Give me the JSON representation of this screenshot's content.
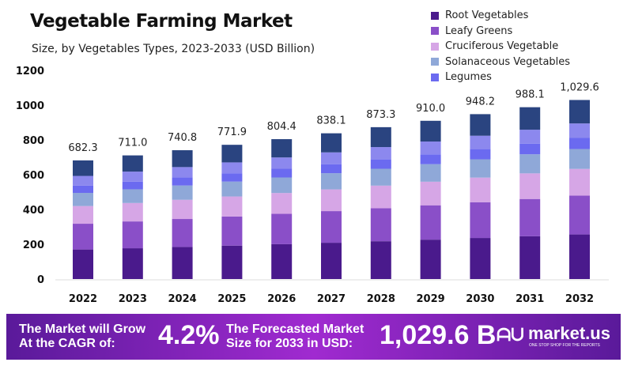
{
  "chart_data": {
    "type": "bar",
    "stacked": true,
    "title": "Vegetable Farming Market",
    "subtitle": "Size, by Vegetables Types, 2023-2033  (USD Billion)",
    "categories": [
      "2022",
      "2023",
      "2024",
      "2025",
      "2026",
      "2027",
      "2028",
      "2029",
      "2030",
      "2031",
      "2032"
    ],
    "totals": [
      "682.3",
      "711.0",
      "740.8",
      "771.9",
      "804.4",
      "838.1",
      "873.3",
      "910.0",
      "948.2",
      "988.1",
      "1,029.6"
    ],
    "ylim": [
      0,
      1200
    ],
    "yticks": [
      0,
      200,
      400,
      600,
      800,
      1000,
      1200
    ],
    "grid": false,
    "legend": "top-right",
    "series": [
      {
        "name": "Root Vegetables",
        "color": "#4a1a8c",
        "values": [
          169.9,
          177.0,
          184.5,
          192.2,
          200.3,
          208.7,
          217.5,
          226.6,
          236.1,
          246.0,
          256.4
        ]
      },
      {
        "name": "Leafy Greens",
        "color": "#8a4fc8",
        "values": [
          148.1,
          154.3,
          160.8,
          167.5,
          174.6,
          181.9,
          189.5,
          197.5,
          205.8,
          214.4,
          223.4
        ]
      },
      {
        "name": "Cruciferous Vegetable",
        "color": "#d6a6e6",
        "values": [
          101.7,
          105.9,
          110.4,
          115.0,
          119.9,
          124.9,
          130.1,
          135.6,
          141.3,
          147.2,
          153.4
        ]
      },
      {
        "name": "Solanaceous Vegetables",
        "color": "#8fa8d8",
        "values": [
          75.7,
          78.9,
          82.2,
          85.7,
          89.3,
          93.0,
          96.9,
          101.0,
          105.3,
          109.7,
          114.3
        ]
      },
      {
        "name": "Legumes",
        "color": "#6b6af0",
        "values": [
          42.3,
          44.1,
          45.9,
          47.9,
          49.9,
          52.0,
          54.1,
          56.4,
          58.8,
          61.3,
          63.8
        ]
      },
      {
        "color": "#8c88ee",
        "values": [
          55.3,
          57.6,
          60.0,
          62.5,
          65.2,
          67.9,
          70.7,
          73.7,
          76.8,
          80.0,
          83.4
        ]
      },
      {
        "color": "#2a4480",
        "values": [
          89.3,
          93.2,
          97.0,
          101.1,
          105.2,
          109.7,
          114.5,
          119.2,
          124.1,
          129.5,
          134.9
        ]
      }
    ]
  },
  "banner": {
    "cagr_label": "The Market will Grow At the CAGR of:",
    "cagr": "4.2%",
    "forecast_label": "The Forecasted Market Size for 2033 in USD:",
    "forecast": "1,029.6 B",
    "brand": "market.us",
    "tagline": "ONE STOP SHOP FOR THE REPORTS"
  }
}
